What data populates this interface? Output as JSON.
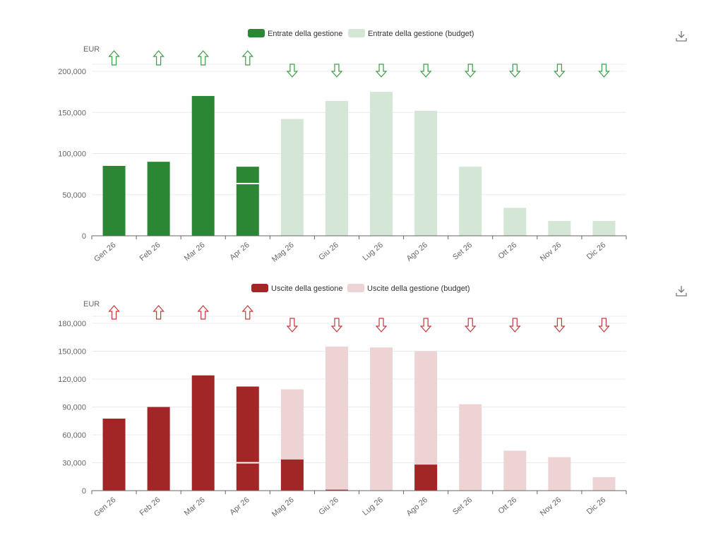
{
  "chart_data": [
    {
      "type": "bar",
      "unit_label": "EUR",
      "categories": [
        "Gen 26",
        "Feb 26",
        "Mar 26",
        "Apr 26",
        "Mag 26",
        "Giu 26",
        "Lug 26",
        "Ago 26",
        "Set 26",
        "Ott 26",
        "Nov 26",
        "Dic 26"
      ],
      "series": [
        {
          "name": "Entrate della gestione",
          "color": "#2b8733",
          "values": [
            85000,
            90000,
            170000,
            84000,
            null,
            null,
            null,
            null,
            null,
            null,
            null,
            null
          ]
        },
        {
          "name": "Entrate della gestione (budget)",
          "color": "#d4e7d6",
          "values": [
            null,
            null,
            null,
            63500,
            142000,
            164000,
            175000,
            152000,
            84000,
            34000,
            18000,
            18000
          ]
        }
      ],
      "trend_arrows": [
        "up",
        "up",
        "up",
        "up",
        "down",
        "down",
        "down",
        "down",
        "down",
        "down",
        "down",
        "down"
      ],
      "arrow_color": "#3d9a45",
      "ylim": [
        0,
        200000
      ],
      "yticks": [
        0,
        50000,
        100000,
        150000,
        200000
      ],
      "ytick_labels": [
        "0",
        "50,000",
        "100,000",
        "150,000",
        "200,000"
      ],
      "legend": "top-center",
      "grid": true
    },
    {
      "type": "bar",
      "unit_label": "EUR",
      "categories": [
        "Gen 26",
        "Feb 26",
        "Mar 26",
        "Apr 26",
        "Mag 26",
        "Giu 26",
        "Lug 26",
        "Ago 26",
        "Set 26",
        "Ott 26",
        "Nov 26",
        "Dic 26"
      ],
      "series": [
        {
          "name": "Uscite della gestione",
          "color": "#a32626",
          "values": [
            77500,
            90000,
            124000,
            112000,
            33500,
            1000,
            null,
            28000,
            null,
            null,
            null,
            null
          ]
        },
        {
          "name": "Uscite della gestione (budget)",
          "color": "#eed3d4",
          "values": [
            null,
            null,
            null,
            30000,
            109000,
            155000,
            154000,
            150000,
            93000,
            43000,
            36000,
            14500
          ]
        }
      ],
      "trend_arrows": [
        "up",
        "up",
        "up",
        "up",
        "down",
        "down",
        "down",
        "down",
        "down",
        "down",
        "down",
        "down"
      ],
      "arrow_color": "#c0393b",
      "ylim": [
        0,
        180000
      ],
      "yticks": [
        0,
        30000,
        60000,
        90000,
        120000,
        150000,
        180000
      ],
      "ytick_labels": [
        "0",
        "30,000",
        "60,000",
        "90,000",
        "120,000",
        "150,000",
        "180,000"
      ],
      "legend": "top-center",
      "grid": true
    }
  ]
}
